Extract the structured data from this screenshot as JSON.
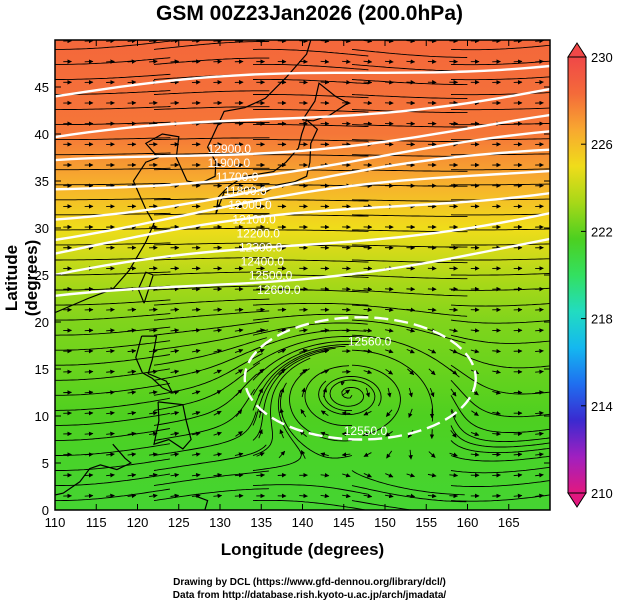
{
  "chart_data": {
    "type": "heatmap",
    "title": "GSM 00Z23Jan2026 (200.0hPa)",
    "xlabel": "Longitude (degrees)",
    "ylabel": "Latitude  (degrees)",
    "xlim": [
      110,
      170
    ],
    "ylim": [
      0,
      50
    ],
    "x_ticks": [
      "110",
      "115",
      "120",
      "125",
      "130",
      "135",
      "140",
      "145",
      "150",
      "155",
      "160",
      "165"
    ],
    "y_ticks": [
      "0",
      "5",
      "10",
      "15",
      "20",
      "25",
      "30",
      "35",
      "40",
      "45"
    ],
    "colorbar": {
      "min": 210,
      "max": 230,
      "tick_labels": [
        "230",
        "226",
        "222",
        "218",
        "214",
        "210"
      ],
      "colors": [
        "#e2187f",
        "#a020c0",
        "#3a2ad0",
        "#1f6ff0",
        "#14b8f0",
        "#22dcc0",
        "#33e060",
        "#4cd020",
        "#a8d818",
        "#f0dc1a",
        "#f8a830",
        "#f46a3a",
        "#f04848"
      ]
    },
    "temperature_bands": [
      {
        "lat": 50,
        "value": 228.5
      },
      {
        "lat": 40,
        "value": 228.0
      },
      {
        "lat": 35,
        "value": 226.5
      },
      {
        "lat": 30,
        "value": 225.0
      },
      {
        "lat": 27,
        "value": 224.2
      },
      {
        "lat": 24,
        "value": 223.3
      },
      {
        "lat": 20,
        "value": 222.6
      },
      {
        "lat": 15,
        "value": 222.2
      },
      {
        "lat": 10,
        "value": 221.7
      },
      {
        "lat": 5,
        "value": 221.4
      },
      {
        "lat": 0,
        "value": 221.2
      }
    ],
    "contour_labels": [
      "12900.0",
      "11900.0",
      "11700.0",
      "11800.0",
      "12000.0",
      "12100.0",
      "12200.0",
      "12300.0",
      "12400.0",
      "12500.0",
      "12600.0",
      "12560.0",
      "12550.0"
    ],
    "low_center": {
      "lon": 146,
      "lat": 13
    },
    "anticyclone": {
      "lon": 147,
      "lat": 14,
      "rx": 14,
      "ry": 6.5
    }
  },
  "credits": {
    "drawing": "Drawing by DCL (https://www.gfd-dennou.org/library/dcl/)",
    "data": "Data from http://database.rish.kyoto-u.ac.jp/arch/jmadata/"
  }
}
